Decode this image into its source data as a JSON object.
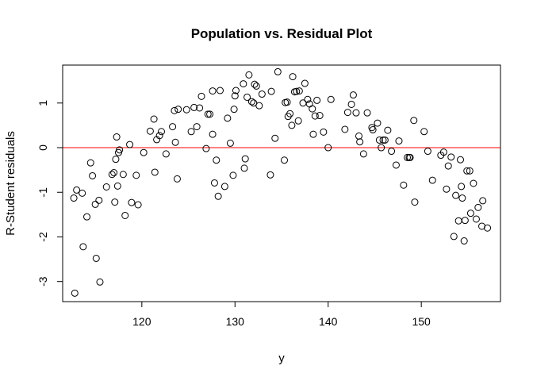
{
  "chart_data": {
    "type": "scatter",
    "title": "Population vs. Residual Plot",
    "xlabel": "y",
    "ylabel": "R-Student residuals",
    "xlim": [
      111.5,
      158.5
    ],
    "ylim": [
      -3.45,
      1.85
    ],
    "xticks": [
      120,
      130,
      140,
      150
    ],
    "yticks": [
      -3,
      -2,
      -1,
      0,
      1
    ],
    "reference_line": {
      "y": 0,
      "color": "#ff0000"
    },
    "point_color": "#000000",
    "x": [
      112.7,
      113.0,
      113.6,
      113.7,
      112.8,
      114.1,
      114.5,
      114.7,
      115.1,
      115.5,
      115.0,
      115.4,
      116.2,
      116.8,
      117.1,
      117.3,
      117.0,
      117.4,
      117.5,
      117.2,
      117.6,
      118.0,
      118.2,
      118.7,
      118.9,
      119.4,
      119.6,
      120.2,
      120.9,
      121.3,
      121.4,
      121.6,
      121.9,
      122.1,
      122.6,
      123.3,
      123.5,
      123.6,
      123.8,
      123.9,
      124.8,
      125.3,
      125.9,
      125.6,
      126.2,
      126.4,
      126.9,
      127.1,
      127.3,
      127.6,
      127.6,
      127.8,
      128.0,
      128.2,
      128.4,
      128.9,
      129.2,
      129.5,
      129.8,
      129.9,
      130.0,
      130.1,
      130.9,
      131.0,
      131.1,
      131.3,
      131.5,
      131.8,
      132.0,
      132.1,
      132.3,
      132.6,
      132.9,
      133.8,
      133.9,
      134.3,
      134.6,
      135.3,
      135.4,
      135.6,
      135.7,
      135.9,
      136.1,
      136.2,
      136.4,
      136.6,
      136.8,
      136.9,
      137.3,
      137.5,
      137.8,
      138.0,
      138.3,
      138.4,
      138.6,
      138.8,
      139.1,
      139.5,
      140.0,
      140.3,
      141.8,
      142.1,
      142.5,
      142.7,
      143.0,
      143.3,
      143.4,
      143.8,
      144.2,
      144.7,
      144.8,
      145.3,
      145.5,
      145.7,
      145.9,
      146.1,
      146.4,
      146.8,
      147.3,
      147.6,
      148.1,
      148.5,
      148.7,
      148.8,
      149.2,
      149.3,
      150.3,
      150.7,
      151.2,
      152.1,
      152.4,
      152.7,
      152.9,
      153.2,
      153.5,
      153.7,
      154.0,
      154.2,
      154.3,
      154.4,
      154.6,
      154.7,
      154.9,
      155.2,
      155.3,
      155.6,
      155.9,
      156.1,
      156.5,
      156.6,
      157.1
    ],
    "y": [
      -1.13,
      -0.95,
      -1.02,
      -2.22,
      -3.26,
      -1.55,
      -0.34,
      -0.63,
      -2.48,
      -3.01,
      -1.27,
      -1.18,
      -0.88,
      -0.6,
      -1.22,
      0.24,
      -0.56,
      -0.86,
      -0.11,
      -0.26,
      -0.05,
      -0.6,
      -1.52,
      0.07,
      -1.23,
      -0.62,
      -1.28,
      -0.11,
      0.37,
      0.64,
      -0.55,
      0.18,
      0.27,
      0.36,
      -0.14,
      0.47,
      0.83,
      0.12,
      -0.7,
      0.86,
      0.85,
      0.36,
      0.47,
      0.9,
      0.89,
      1.15,
      -0.02,
      0.75,
      0.75,
      1.27,
      0.3,
      -0.79,
      -0.28,
      -1.09,
      1.28,
      -0.87,
      0.66,
      0.1,
      -0.62,
      0.86,
      1.16,
      1.28,
      1.43,
      -0.46,
      -0.25,
      1.13,
      1.63,
      1.03,
      1.0,
      1.42,
      1.38,
      0.94,
      1.2,
      -0.61,
      1.26,
      0.21,
      1.7,
      -0.28,
      1.01,
      1.02,
      0.7,
      0.76,
      0.5,
      1.59,
      1.25,
      1.26,
      0.6,
      1.27,
      1.0,
      1.44,
      1.08,
      0.98,
      0.87,
      0.3,
      0.71,
      1.06,
      0.72,
      0.35,
      0.0,
      1.08,
      0.41,
      0.79,
      0.97,
      1.18,
      0.78,
      0.26,
      0.13,
      -0.14,
      0.78,
      0.45,
      0.4,
      0.55,
      0.17,
      0.0,
      0.17,
      0.17,
      0.39,
      -0.08,
      -0.39,
      0.15,
      -0.84,
      -0.22,
      -0.22,
      -0.22,
      0.61,
      -1.22,
      0.36,
      -0.08,
      -0.73,
      -0.17,
      -0.1,
      -0.93,
      -0.41,
      -0.21,
      -1.99,
      -1.07,
      -1.64,
      -0.27,
      -0.87,
      -1.13,
      -2.09,
      -1.63,
      -0.52,
      -0.52,
      -1.47,
      -0.8,
      -1.6,
      -1.34,
      -1.76,
      -1.19,
      -1.8
    ]
  }
}
